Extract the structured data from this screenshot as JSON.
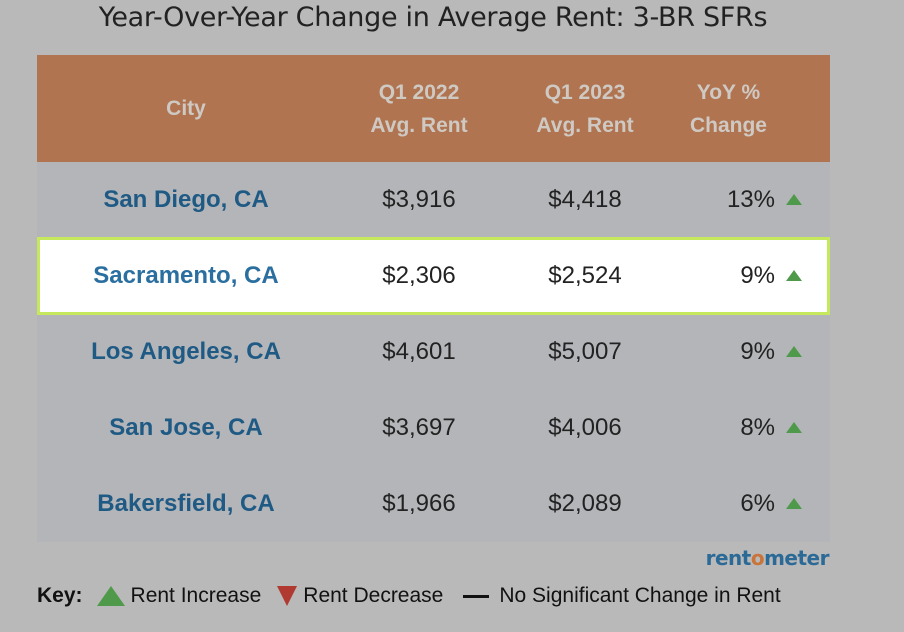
{
  "title": "Year-Over-Year Change in Average Rent: 3-BR SFRs",
  "headers": {
    "city": "City",
    "q1_2022_a": "Q1 2022",
    "q1_2022_b": "Avg. Rent",
    "q1_2023_a": "Q1 2023",
    "q1_2023_b": "Avg. Rent",
    "yoy_a": "YoY %",
    "yoy_b": "Change"
  },
  "rows": [
    {
      "city": "San Diego, CA",
      "q1_2022": "$3,916",
      "q1_2023": "$4,418",
      "yoy": "13%",
      "trend": "increase"
    },
    {
      "city": "Sacramento, CA",
      "q1_2022": "$2,306",
      "q1_2023": "$2,524",
      "yoy": "9%",
      "trend": "increase",
      "highlighted": true
    },
    {
      "city": "Los Angeles, CA",
      "q1_2022": "$4,601",
      "q1_2023": "$5,007",
      "yoy": "9%",
      "trend": "increase"
    },
    {
      "city": "San Jose, CA",
      "q1_2022": "$3,697",
      "q1_2023": "$4,006",
      "yoy": "8%",
      "trend": "increase"
    },
    {
      "city": "Bakersfield, CA",
      "q1_2022": "$1,966",
      "q1_2023": "$2,089",
      "yoy": "6%",
      "trend": "increase"
    }
  ],
  "logo": {
    "pre": "rent",
    "o": "o",
    "post": "meter"
  },
  "key": {
    "label": "Key:",
    "increase": "Rent Increase",
    "decrease": "Rent Decrease",
    "none": "No Significant Change in Rent"
  },
  "colors": {
    "header": "#b07450",
    "increase": "#4f9a4a",
    "decrease": "#b03a32",
    "highlight": "#c6e85c"
  }
}
